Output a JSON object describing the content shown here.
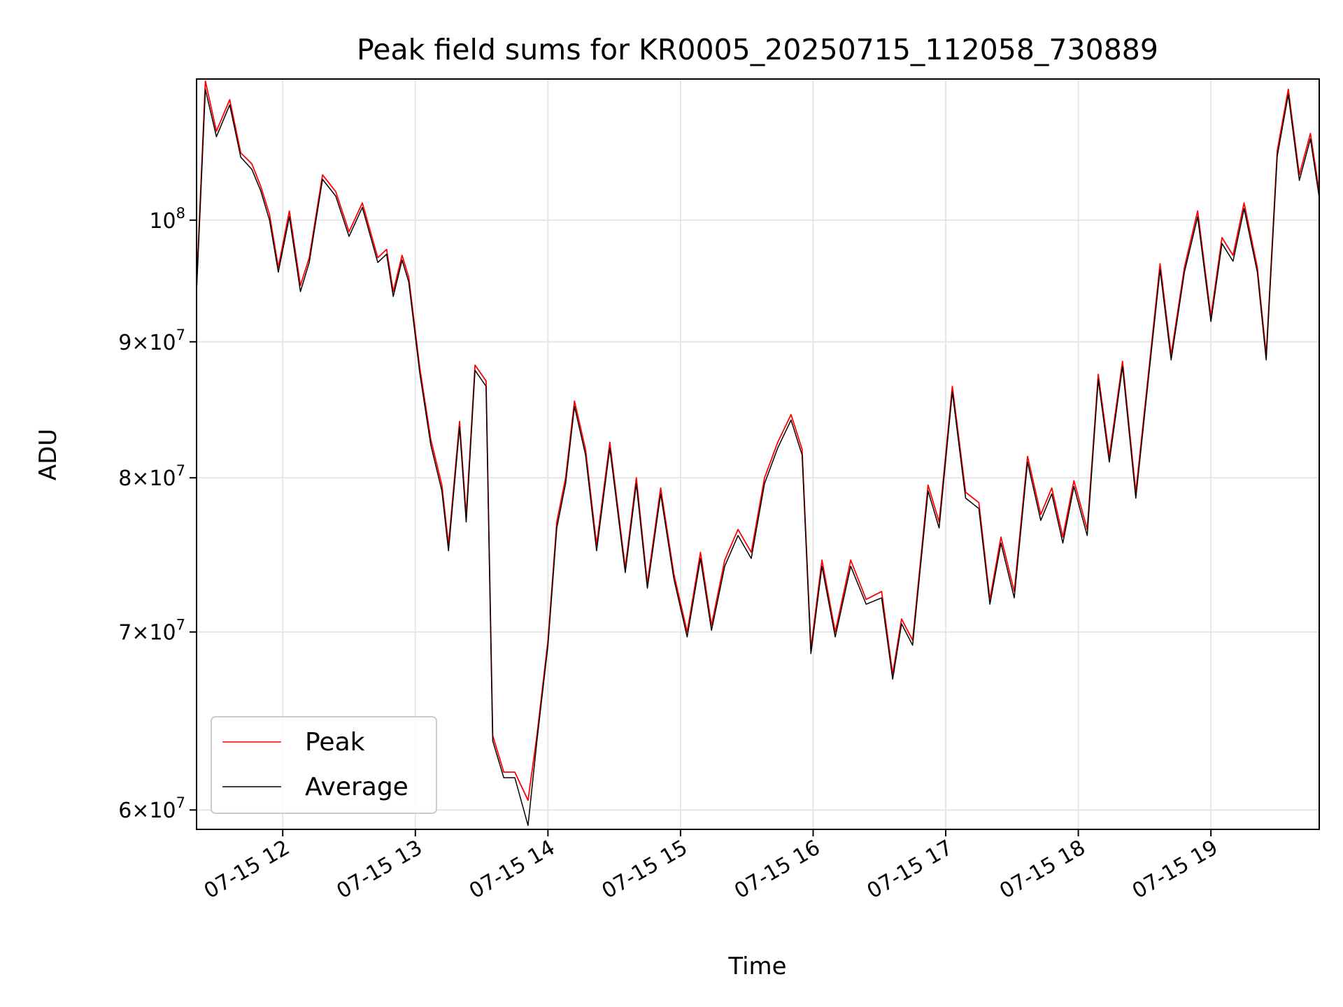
{
  "chart_data": {
    "type": "line",
    "title": "Peak field sums for KR0005_20250715_112058_730889",
    "xlabel": "Time",
    "ylabel": "ADU",
    "xscale": "time",
    "yscale": "log",
    "xlim": [
      "2025-07-15 11:21",
      "2025-07-15 19:49"
    ],
    "ylim": [
      59000000,
      113000000
    ],
    "grid": true,
    "legend_position": "lower-left",
    "x_ticks": [
      "07-15 12",
      "07-15 13",
      "07-15 14",
      "07-15 15",
      "07-15 16",
      "07-15 17",
      "07-15 18",
      "07-15 19"
    ],
    "x_tick_times": [
      "2025-07-15 12:00",
      "2025-07-15 13:00",
      "2025-07-15 14:00",
      "2025-07-15 15:00",
      "2025-07-15 16:00",
      "2025-07-15 17:00",
      "2025-07-15 18:00",
      "2025-07-15 19:00"
    ],
    "y_ticks": [
      {
        "value": 60000000,
        "mantissa": "6",
        "base": "10",
        "exponent": "7"
      },
      {
        "value": 70000000,
        "mantissa": "7",
        "base": "10",
        "exponent": "7"
      },
      {
        "value": 80000000,
        "mantissa": "8",
        "base": "10",
        "exponent": "7"
      },
      {
        "value": 90000000,
        "mantissa": "9",
        "base": "10",
        "exponent": "7"
      },
      {
        "value": 100000000,
        "mantissa": "",
        "base": "10",
        "exponent": "8"
      }
    ],
    "x": [
      "2025-07-15 11:21",
      "2025-07-15 11:25",
      "2025-07-15 11:30",
      "2025-07-15 11:36",
      "2025-07-15 11:41",
      "2025-07-15 11:46",
      "2025-07-15 11:50",
      "2025-07-15 11:54",
      "2025-07-15 11:58",
      "2025-07-15 12:03",
      "2025-07-15 12:08",
      "2025-07-15 12:12",
      "2025-07-15 12:18",
      "2025-07-15 12:24",
      "2025-07-15 12:30",
      "2025-07-15 12:36",
      "2025-07-15 12:43",
      "2025-07-15 12:47",
      "2025-07-15 12:50",
      "2025-07-15 12:54",
      "2025-07-15 12:57",
      "2025-07-15 13:02",
      "2025-07-15 13:07",
      "2025-07-15 13:12",
      "2025-07-15 13:15",
      "2025-07-15 13:20",
      "2025-07-15 13:23",
      "2025-07-15 13:27",
      "2025-07-15 13:32",
      "2025-07-15 13:35",
      "2025-07-15 13:40",
      "2025-07-15 13:45",
      "2025-07-15 13:51",
      "2025-07-15 13:55",
      "2025-07-15 14:00",
      "2025-07-15 14:04",
      "2025-07-15 14:08",
      "2025-07-15 14:12",
      "2025-07-15 14:17",
      "2025-07-15 14:22",
      "2025-07-15 14:28",
      "2025-07-15 14:35",
      "2025-07-15 14:40",
      "2025-07-15 14:45",
      "2025-07-15 14:51",
      "2025-07-15 14:57",
      "2025-07-15 15:03",
      "2025-07-15 15:09",
      "2025-07-15 15:14",
      "2025-07-15 15:20",
      "2025-07-15 15:26",
      "2025-07-15 15:32",
      "2025-07-15 15:38",
      "2025-07-15 15:44",
      "2025-07-15 15:50",
      "2025-07-15 15:55",
      "2025-07-15 15:59",
      "2025-07-15 16:04",
      "2025-07-15 16:10",
      "2025-07-15 16:17",
      "2025-07-15 16:24",
      "2025-07-15 16:31",
      "2025-07-15 16:36",
      "2025-07-15 16:40",
      "2025-07-15 16:45",
      "2025-07-15 16:52",
      "2025-07-15 16:57",
      "2025-07-15 17:03",
      "2025-07-15 17:09",
      "2025-07-15 17:15",
      "2025-07-15 17:20",
      "2025-07-15 17:25",
      "2025-07-15 17:31",
      "2025-07-15 17:37",
      "2025-07-15 17:43",
      "2025-07-15 17:48",
      "2025-07-15 17:53",
      "2025-07-15 17:58",
      "2025-07-15 18:04",
      "2025-07-15 18:09",
      "2025-07-15 18:14",
      "2025-07-15 18:20",
      "2025-07-15 18:26",
      "2025-07-15 18:32",
      "2025-07-15 18:37",
      "2025-07-15 18:42",
      "2025-07-15 18:48",
      "2025-07-15 18:54",
      "2025-07-15 19:00",
      "2025-07-15 19:05",
      "2025-07-15 19:10",
      "2025-07-15 19:15",
      "2025-07-15 19:21",
      "2025-07-15 19:25",
      "2025-07-15 19:30",
      "2025-07-15 19:35",
      "2025-07-15 19:40",
      "2025-07-15 19:45",
      "2025-07-15 19:49"
    ],
    "series": [
      {
        "name": "Peak",
        "color": "#ff0000",
        "values": [
          94500000,
          112800000,
          108000000,
          111000000,
          106000000,
          105000000,
          103000000,
          100500000,
          96000000,
          100800000,
          94500000,
          96800000,
          104000000,
          102500000,
          99000000,
          101500000,
          96800000,
          97500000,
          94000000,
          97000000,
          95200000,
          88000000,
          82700000,
          79500000,
          75500000,
          84000000,
          77400000,
          88200000,
          87000000,
          64000000,
          62000000,
          62000000,
          60500000,
          64000000,
          69500000,
          77000000,
          80000000,
          85500000,
          82000000,
          75500000,
          82500000,
          74000000,
          80000000,
          73000000,
          79300000,
          73600000,
          70000000,
          75000000,
          70400000,
          74500000,
          76500000,
          75000000,
          80000000,
          82500000,
          84500000,
          82000000,
          69000000,
          74500000,
          70000000,
          74500000,
          72000000,
          72500000,
          67500000,
          70800000,
          69500000,
          79500000,
          77000000,
          86600000,
          79000000,
          78300000,
          72000000,
          76000000,
          72500000,
          81500000,
          77500000,
          79300000,
          76000000,
          79800000,
          76500000,
          87500000,
          81500000,
          88500000,
          79000000,
          88000000,
          96300000,
          89000000,
          96000000,
          100800000,
          92000000,
          98500000,
          97000000,
          101500000,
          96000000,
          89000000,
          106200000,
          112000000,
          104000000,
          107800000,
          102500000
        ]
      },
      {
        "name": "Average",
        "color": "#000000",
        "values": [
          94000000,
          112000000,
          107500000,
          110500000,
          105600000,
          104500000,
          102600000,
          100000000,
          95600000,
          100300000,
          94000000,
          96400000,
          103600000,
          102100000,
          98600000,
          101100000,
          96400000,
          97100000,
          93600000,
          96600000,
          94800000,
          87600000,
          82300000,
          79100000,
          75100000,
          83600000,
          77000000,
          87800000,
          86600000,
          63700000,
          61700000,
          61700000,
          59200000,
          63700000,
          69200000,
          76600000,
          79600000,
          85100000,
          81600000,
          75100000,
          82100000,
          73700000,
          79600000,
          72700000,
          78900000,
          73300000,
          69700000,
          74600000,
          70100000,
          74100000,
          76100000,
          74600000,
          79600000,
          82100000,
          84100000,
          81600000,
          68700000,
          74100000,
          69700000,
          74100000,
          71700000,
          72100000,
          67200000,
          70500000,
          69200000,
          79100000,
          76600000,
          86200000,
          78600000,
          77900000,
          71700000,
          75600000,
          72100000,
          81100000,
          77100000,
          78900000,
          75600000,
          79400000,
          76100000,
          87100000,
          81100000,
          88100000,
          78600000,
          87600000,
          95800000,
          88600000,
          95600000,
          100300000,
          91600000,
          98000000,
          96500000,
          101000000,
          95600000,
          88600000,
          105700000,
          111500000,
          103500000,
          107300000,
          102000000
        ]
      }
    ]
  }
}
